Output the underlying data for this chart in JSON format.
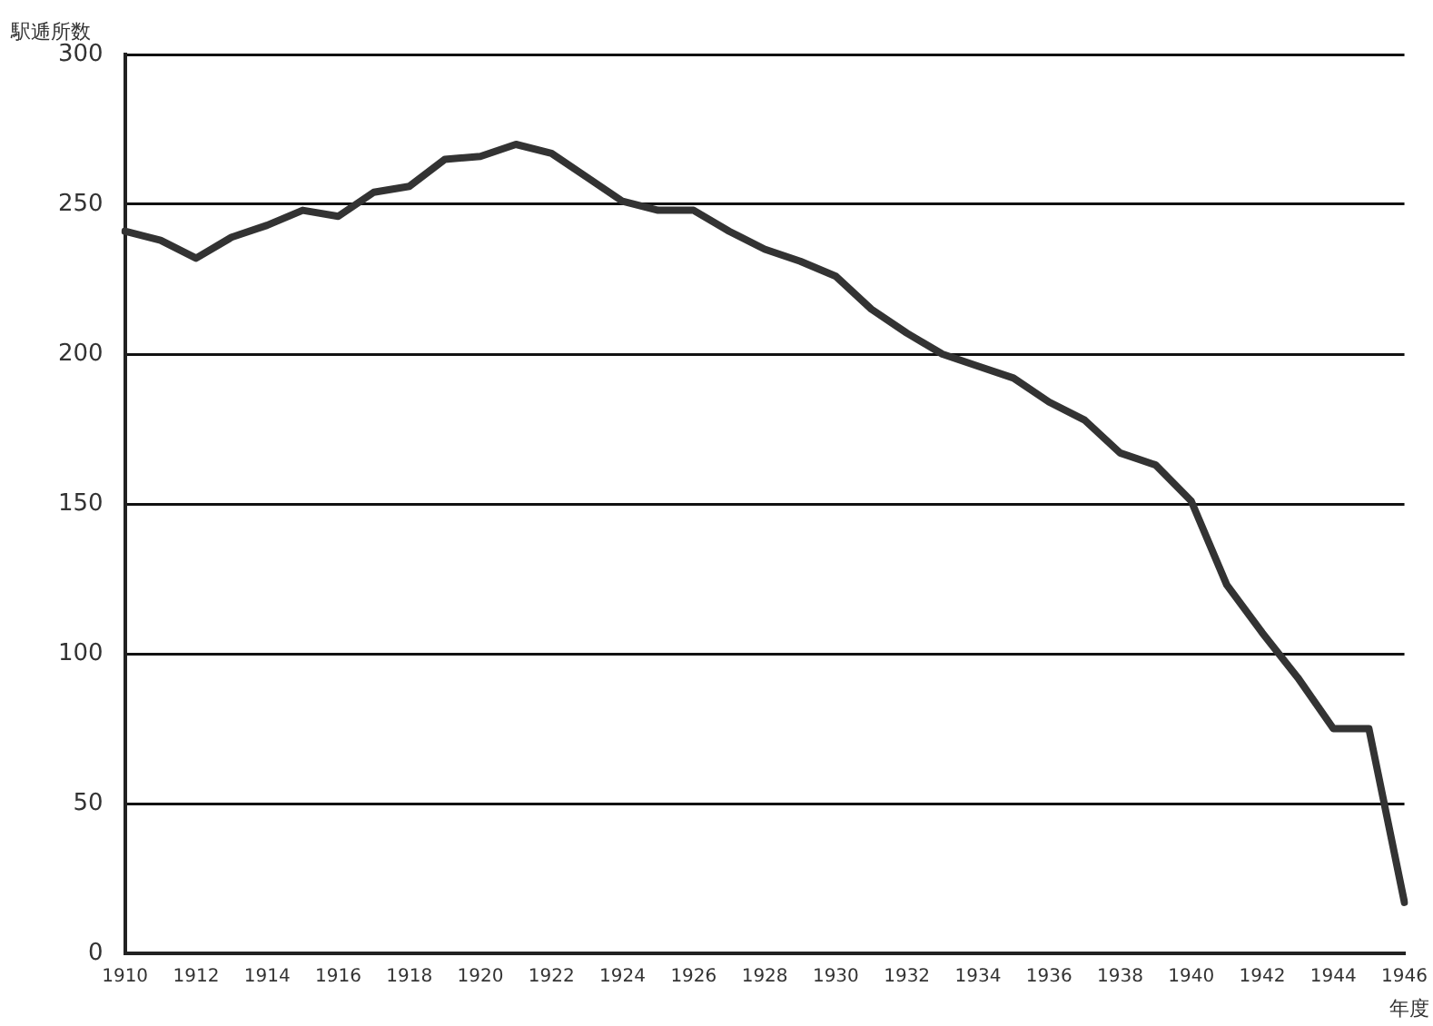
{
  "chart_data": {
    "type": "line",
    "ylabel": "駅逓所数",
    "xlabel": "年度",
    "categories": [
      "1910",
      null,
      "1912",
      null,
      "1914",
      null,
      "1916",
      null,
      "1918",
      null,
      "1920",
      null,
      "1922",
      null,
      "1924",
      null,
      "1926",
      null,
      "1928",
      null,
      "1930",
      null,
      "1932",
      null,
      "1934",
      null,
      "1936",
      null,
      "1938",
      null,
      "1940",
      null,
      "1942",
      null,
      "1944",
      null,
      "1946"
    ],
    "series": [
      {
        "color": "#333333",
        "values": [
          241,
          238,
          232,
          239,
          243,
          248,
          246,
          254,
          256,
          265,
          266,
          270,
          267,
          259,
          251,
          248,
          248,
          241,
          235,
          231,
          226,
          215,
          207,
          200,
          196,
          192,
          184,
          178,
          167,
          163,
          151,
          123,
          107,
          92,
          75,
          75,
          17
        ]
      }
    ],
    "ylim": [
      0,
      300
    ],
    "yticks": [
      0,
      50,
      100,
      150,
      200,
      250,
      300
    ],
    "grid": "y",
    "legend": false,
    "marker": "none",
    "line_style": "solid"
  }
}
